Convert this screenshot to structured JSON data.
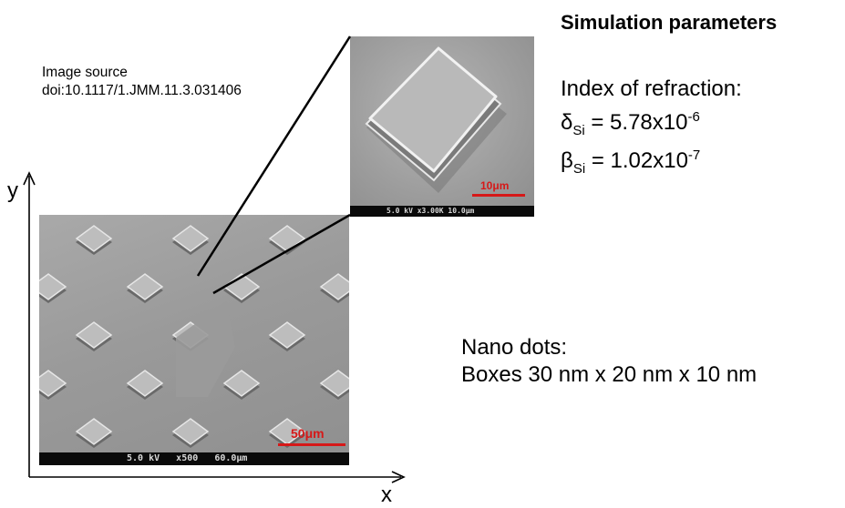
{
  "image_source": {
    "line1": "Image source",
    "line2": "doi:10.1117/1.JMM.11.3.031406"
  },
  "simulation": {
    "title": "Simulation parameters",
    "index_title": "Index of refraction:",
    "delta": {
      "symbol": "δ",
      "subscript": "Si",
      "value": "= 5.78x10",
      "exponent": "-6"
    },
    "beta": {
      "symbol": "β",
      "subscript": "Si",
      "value": "= 1.02x10",
      "exponent": "-7"
    }
  },
  "nano_dots": {
    "title": "Nano dots:",
    "description": "Boxes 30 nm x 20 nm x 10 nm"
  },
  "axes": {
    "x_label": "x",
    "y_label": "y"
  },
  "sem_main": {
    "scale_label": "50μm",
    "info_bar": "5.0 kV   x500   60.0μm"
  },
  "sem_inset": {
    "scale_label": "10μm",
    "info_bar": "5.0 kV x3.00K 10.0μm"
  },
  "colors": {
    "scale_red": "#d61818",
    "micrograph_gray": "#9a9a9a",
    "info_bar_black": "#0a0a0a"
  }
}
